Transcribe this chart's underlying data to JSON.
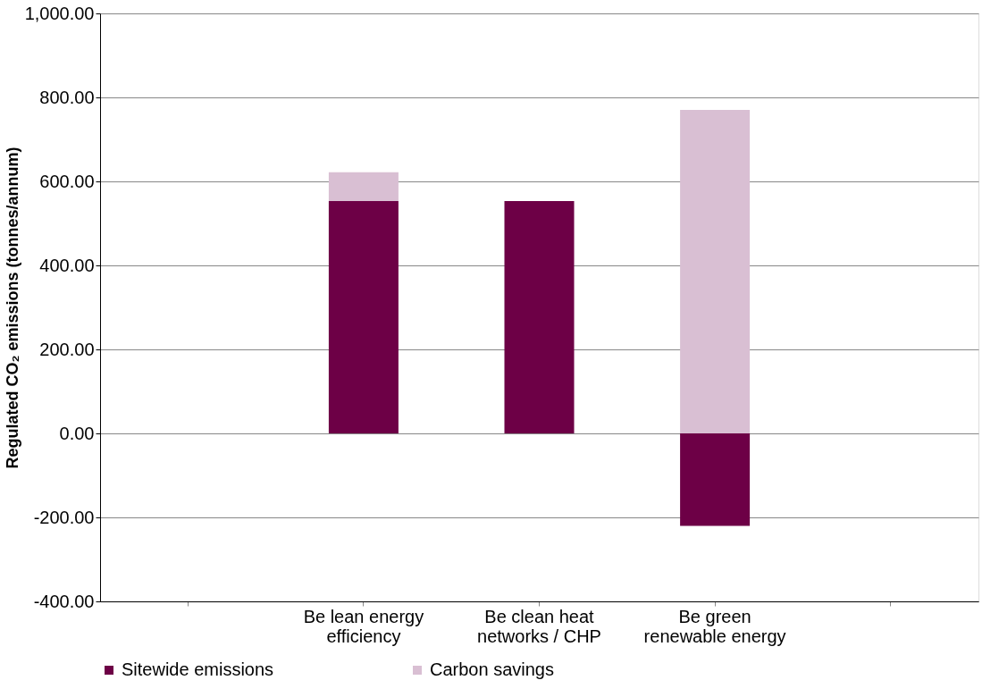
{
  "chart_data": {
    "type": "bar",
    "stacked": true,
    "ylabel": "Regulated CO₂ emissions (tonnes/annum)",
    "categories": [
      null,
      "Be lean energy efficiency",
      "Be clean heat networks / CHP",
      "Be green renewable energy",
      null
    ],
    "series": [
      {
        "name": "Sitewide emissions",
        "color": "#6d0046",
        "values": [
          null,
          553,
          553,
          -220,
          null
        ]
      },
      {
        "name": "Carbon savings",
        "color": "#d9bfd3",
        "values": [
          null,
          69,
          0,
          770,
          null
        ]
      }
    ],
    "ylim": [
      -400,
      1000
    ],
    "yticks": [
      {
        "value": -400,
        "label": "-400.00"
      },
      {
        "value": -200,
        "label": "-200.00"
      },
      {
        "value": 0,
        "label": "0.00"
      },
      {
        "value": 200,
        "label": "200.00"
      },
      {
        "value": 400,
        "label": "400.00"
      },
      {
        "value": 600,
        "label": "600.00"
      },
      {
        "value": 800,
        "label": "800.00"
      },
      {
        "value": 1000,
        "label": "1,000.00"
      }
    ],
    "grid": "y",
    "legend": "bottom"
  }
}
